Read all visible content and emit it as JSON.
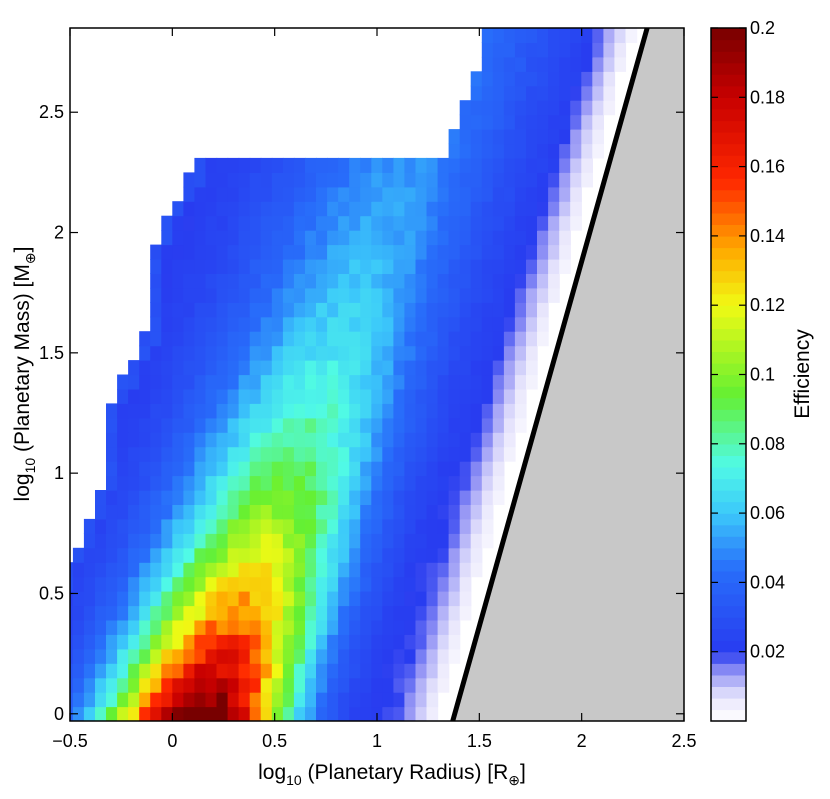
{
  "chart_data": {
    "type": "heatmap",
    "xlabel_main": "log",
    "xlabel_sub": "10",
    "xlabel_rest": " (Planetary Radius) [R",
    "xlabel_unit_sub": "⊕",
    "xlabel_close": "]",
    "ylabel_main": "log",
    "ylabel_sub": "10",
    "ylabel_rest": " (Planetary Mass) [M",
    "ylabel_unit_sub": "⊕",
    "ylabel_close": "]",
    "xlim": [
      -0.5,
      2.5
    ],
    "ylim": [
      -0.03,
      2.85
    ],
    "x_ticks": [
      -0.5,
      0,
      0.5,
      1,
      1.5,
      2,
      2.5
    ],
    "x_tick_labels": [
      "−0.5",
      "0",
      "0.5",
      "1",
      "1.5",
      "2",
      "2.5"
    ],
    "y_ticks": [
      0,
      0.5,
      1,
      1.5,
      2,
      2.5
    ],
    "y_tick_labels": [
      "0",
      "0.5",
      "1",
      "1.5",
      "2",
      "2.5"
    ],
    "cell_size": {
      "dx": 0.054,
      "dy": 0.06
    },
    "ridge_line": {
      "x0": 1.36,
      "x_slope_per_y": 0.335
    },
    "efficiency_peak": 0.17,
    "excluded_region": {
      "boundary_x_at_ymin": 1.37,
      "boundary_x_at_ymax": 2.32,
      "fill_color": "#c8c8c8",
      "boundary_color": "#000000"
    },
    "colorbar": {
      "label": "Efficiency",
      "range": [
        0,
        0.2
      ],
      "ticks": [
        0.02,
        0.04,
        0.06,
        0.08,
        0.1,
        0.12,
        0.14,
        0.16,
        0.18,
        0.2
      ],
      "tick_labels": [
        "0.02",
        "0.04",
        "0.06",
        "0.08",
        "0.1",
        "0.12",
        "0.14",
        "0.16",
        "0.18",
        "0.2"
      ],
      "colormap": "jet (white at zero)"
    },
    "grid": false,
    "legend": "none"
  }
}
